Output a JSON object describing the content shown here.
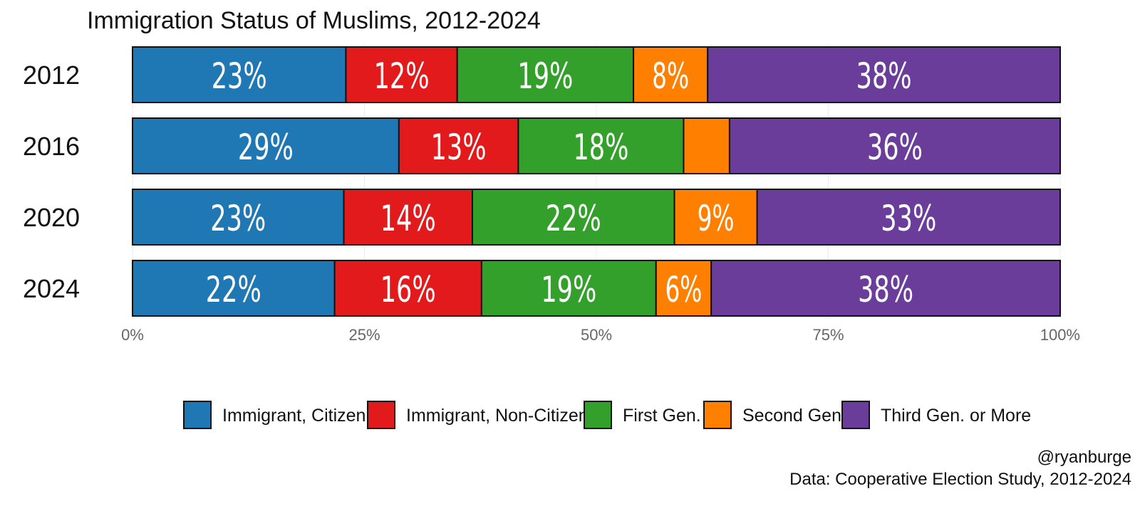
{
  "chart_data": {
    "type": "bar",
    "orientation": "horizontal",
    "stacked": true,
    "title": "Immigration Status of Muslims, 2012-2024",
    "categories": [
      "2012",
      "2016",
      "2020",
      "2024"
    ],
    "series": [
      {
        "name": "Immigrant, Citizen",
        "color": "#1f77b4",
        "values": [
          23,
          29,
          23,
          22
        ],
        "labels": [
          "23%",
          "29%",
          "23%",
          "22%"
        ]
      },
      {
        "name": "Immigrant, Non-Citizen",
        "color": "#e31a1c",
        "values": [
          12,
          13,
          14,
          16
        ],
        "labels": [
          "12%",
          "13%",
          "14%",
          "16%"
        ]
      },
      {
        "name": "First Gen.",
        "color": "#33a02c",
        "values": [
          19,
          18,
          22,
          19
        ],
        "labels": [
          "19%",
          "18%",
          "22%",
          "19%"
        ]
      },
      {
        "name": "Second Gen.",
        "color": "#ff7f00",
        "values": [
          8,
          5,
          9,
          6
        ],
        "labels": [
          "8%",
          "",
          "9%",
          "6%"
        ]
      },
      {
        "name": "Third Gen. or More",
        "color": "#6a3d9a",
        "values": [
          38,
          36,
          33,
          38
        ],
        "labels": [
          "38%",
          "36%",
          "33%",
          "38%"
        ]
      }
    ],
    "xlim": [
      0,
      100
    ],
    "xticks": [
      0,
      25,
      50,
      75,
      100
    ],
    "xtick_labels": [
      "0%",
      "25%",
      "50%",
      "75%",
      "100%"
    ],
    "legend_position": "bottom",
    "grid": true
  },
  "credit": "@ryanburge",
  "source": "Data: Cooperative Election Study, 2012-2024"
}
